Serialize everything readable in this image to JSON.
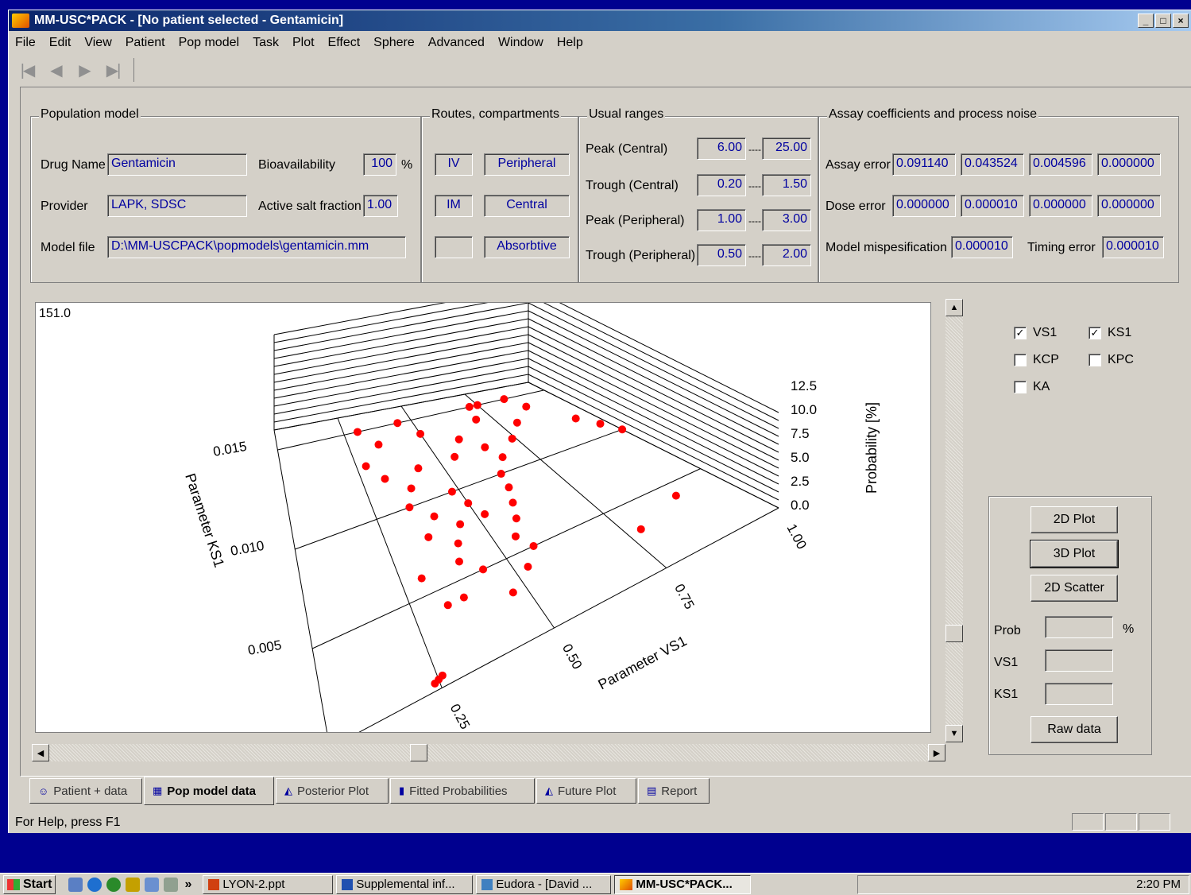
{
  "window": {
    "title": "MM-USC*PACK - [No patient selected - Gentamicin]",
    "controls": [
      "_",
      "□",
      "×"
    ]
  },
  "menu": [
    "File",
    "Edit",
    "View",
    "Patient",
    "Pop model",
    "Task",
    "Plot",
    "Effect",
    "Sphere",
    "Advanced",
    "Window",
    "Help"
  ],
  "nav": {
    "first": "|◀",
    "prev": "◀",
    "next": "▶",
    "last": "▶|"
  },
  "population": {
    "title": "Population model",
    "drug_label": "Drug Name",
    "drug": "Gentamicin",
    "bio_label": "Bioavailability",
    "bio": "100",
    "bio_unit": "%",
    "provider_label": "Provider",
    "provider": "LAPK, SDSC",
    "salt_label": "Active salt fraction",
    "salt": "1.00",
    "model_label": "Model file",
    "model": "D:\\MM-USCPACK\\popmodels\\gentamicin.mm"
  },
  "routes": {
    "title": "Routes, compartments",
    "r1": "IV",
    "r2": "IM",
    "r3": "",
    "c1": "Peripheral",
    "c2": "Central",
    "c3": "Absorbtive"
  },
  "ranges": {
    "title": "Usual ranges",
    "rows": [
      {
        "label": "Peak (Central)",
        "lo": "6.00",
        "hi": "25.00"
      },
      {
        "label": "Trough (Central)",
        "lo": "0.20",
        "hi": "1.50"
      },
      {
        "label": "Peak (Peripheral)",
        "lo": "1.00",
        "hi": "3.00"
      },
      {
        "label": "Trough (Peripheral)",
        "lo": "0.50",
        "hi": "2.00"
      }
    ],
    "sep": "----"
  },
  "assay": {
    "title": "Assay coefficients and process noise",
    "assay_label": "Assay error",
    "assay": [
      "0.091140",
      "0.043524",
      "0.004596",
      "0.000000"
    ],
    "dose_label": "Dose error",
    "dose": [
      "0.000000",
      "0.000010",
      "0.000000",
      "0.000000"
    ],
    "mis_label": "Model mispesification",
    "mis": "0.000010",
    "timing_label": "Timing error",
    "timing": "0.000010"
  },
  "plot": {
    "corner": "151.0",
    "z_label": "Probability [%]",
    "x_label": "Parameter VS1",
    "y_label": "Parameter KS1",
    "z_ticks": [
      "12.5",
      "10.0",
      "7.5",
      "5.0",
      "2.5",
      "0.0"
    ],
    "x_ticks": [
      "0.25",
      "0.50",
      "0.75",
      "1.00"
    ],
    "y_ticks": [
      "0.015",
      "0.010",
      "0.005"
    ]
  },
  "params": [
    {
      "label": "VS1",
      "checked": true
    },
    {
      "label": "KS1",
      "checked": true
    },
    {
      "label": "KCP",
      "checked": false
    },
    {
      "label": "KPC",
      "checked": false
    },
    {
      "label": "KA",
      "checked": false
    }
  ],
  "check_mark": "✓",
  "buttons": {
    "p2d": "2D Plot",
    "p3d": "3D Plot",
    "scatter": "2D Scatter",
    "raw": "Raw data"
  },
  "readout": {
    "prob": "Prob",
    "prob_unit": "%",
    "vs1": "VS1",
    "ks1": "KS1"
  },
  "tabs": [
    {
      "icon": "☺",
      "label": "Patient + data"
    },
    {
      "icon": "▦",
      "label": "Pop model data"
    },
    {
      "icon": "◭",
      "label": "Posterior Plot"
    },
    {
      "icon": "▮",
      "label": "Fitted Probabilities"
    },
    {
      "icon": "◭",
      "label": "Future Plot"
    },
    {
      "icon": "▤",
      "label": "Report"
    }
  ],
  "status": "For Help, press F1",
  "taskbar": {
    "start": "Start",
    "more": "»",
    "tasks": [
      "LYON-2.ppt",
      "Supplemental inf...",
      "Eudora - [David ...",
      "MM-USC*PACK..."
    ],
    "clock": "2:20 PM"
  },
  "chart_data": {
    "type": "scatter",
    "note_axes": "3D scatter of population support points",
    "xlabel": "Parameter VS1",
    "ylabel": "Parameter KS1",
    "zlabel": "Probability [%]",
    "xlim": [
      0.0,
      1.0
    ],
    "ylim": [
      0.0,
      0.016
    ],
    "zlim": [
      0.0,
      12.5
    ],
    "points": [
      [
        0.25,
        0.0005,
        0
      ],
      [
        0.26,
        0.0006,
        0
      ],
      [
        0.24,
        0.0004,
        0
      ],
      [
        0.3,
        0.006,
        0
      ],
      [
        0.33,
        0.004,
        0
      ],
      [
        0.37,
        0.004,
        0
      ],
      [
        0.4,
        0.006,
        0
      ],
      [
        0.42,
        0.007,
        0
      ],
      [
        0.35,
        0.01,
        0
      ],
      [
        0.38,
        0.011,
        0
      ],
      [
        0.45,
        0.008,
        0
      ],
      [
        0.48,
        0.01,
        0
      ],
      [
        0.5,
        0.009,
        0
      ],
      [
        0.52,
        0.008,
        0
      ],
      [
        0.55,
        0.006,
        0
      ],
      [
        0.58,
        0.007,
        0
      ],
      [
        0.6,
        0.008,
        0
      ],
      [
        0.62,
        0.009,
        0
      ],
      [
        0.55,
        0.012,
        0
      ],
      [
        0.6,
        0.013,
        0
      ],
      [
        0.65,
        0.012,
        0
      ],
      [
        0.7,
        0.014,
        0
      ],
      [
        0.72,
        0.015,
        0
      ],
      [
        0.5,
        0.014,
        0
      ],
      [
        0.45,
        0.015,
        0
      ],
      [
        0.8,
        0.013,
        0
      ],
      [
        0.85,
        0.015,
        0
      ],
      [
        0.88,
        0.014,
        0
      ],
      [
        0.75,
        0.015,
        0
      ],
      [
        0.95,
        0.012,
        0
      ],
      [
        0.98,
        0.011,
        0
      ],
      [
        1.0,
        0.01,
        0
      ],
      [
        0.78,
        0.003,
        0
      ],
      [
        0.9,
        0.004,
        0
      ],
      [
        0.3,
        0.015,
        0
      ],
      [
        0.28,
        0.013,
        0
      ],
      [
        0.32,
        0.012,
        0
      ],
      [
        0.36,
        0.008,
        0
      ],
      [
        0.44,
        0.005,
        0
      ],
      [
        0.47,
        0.003,
        0
      ],
      [
        0.53,
        0.004,
        0
      ],
      [
        0.57,
        0.005,
        0
      ],
      [
        0.63,
        0.01,
        0
      ],
      [
        0.67,
        0.011,
        0
      ],
      [
        0.74,
        0.012,
        0
      ],
      [
        0.4,
        0.009,
        0
      ],
      [
        0.43,
        0.012,
        0
      ],
      [
        0.35,
        0.014,
        0
      ]
    ]
  }
}
